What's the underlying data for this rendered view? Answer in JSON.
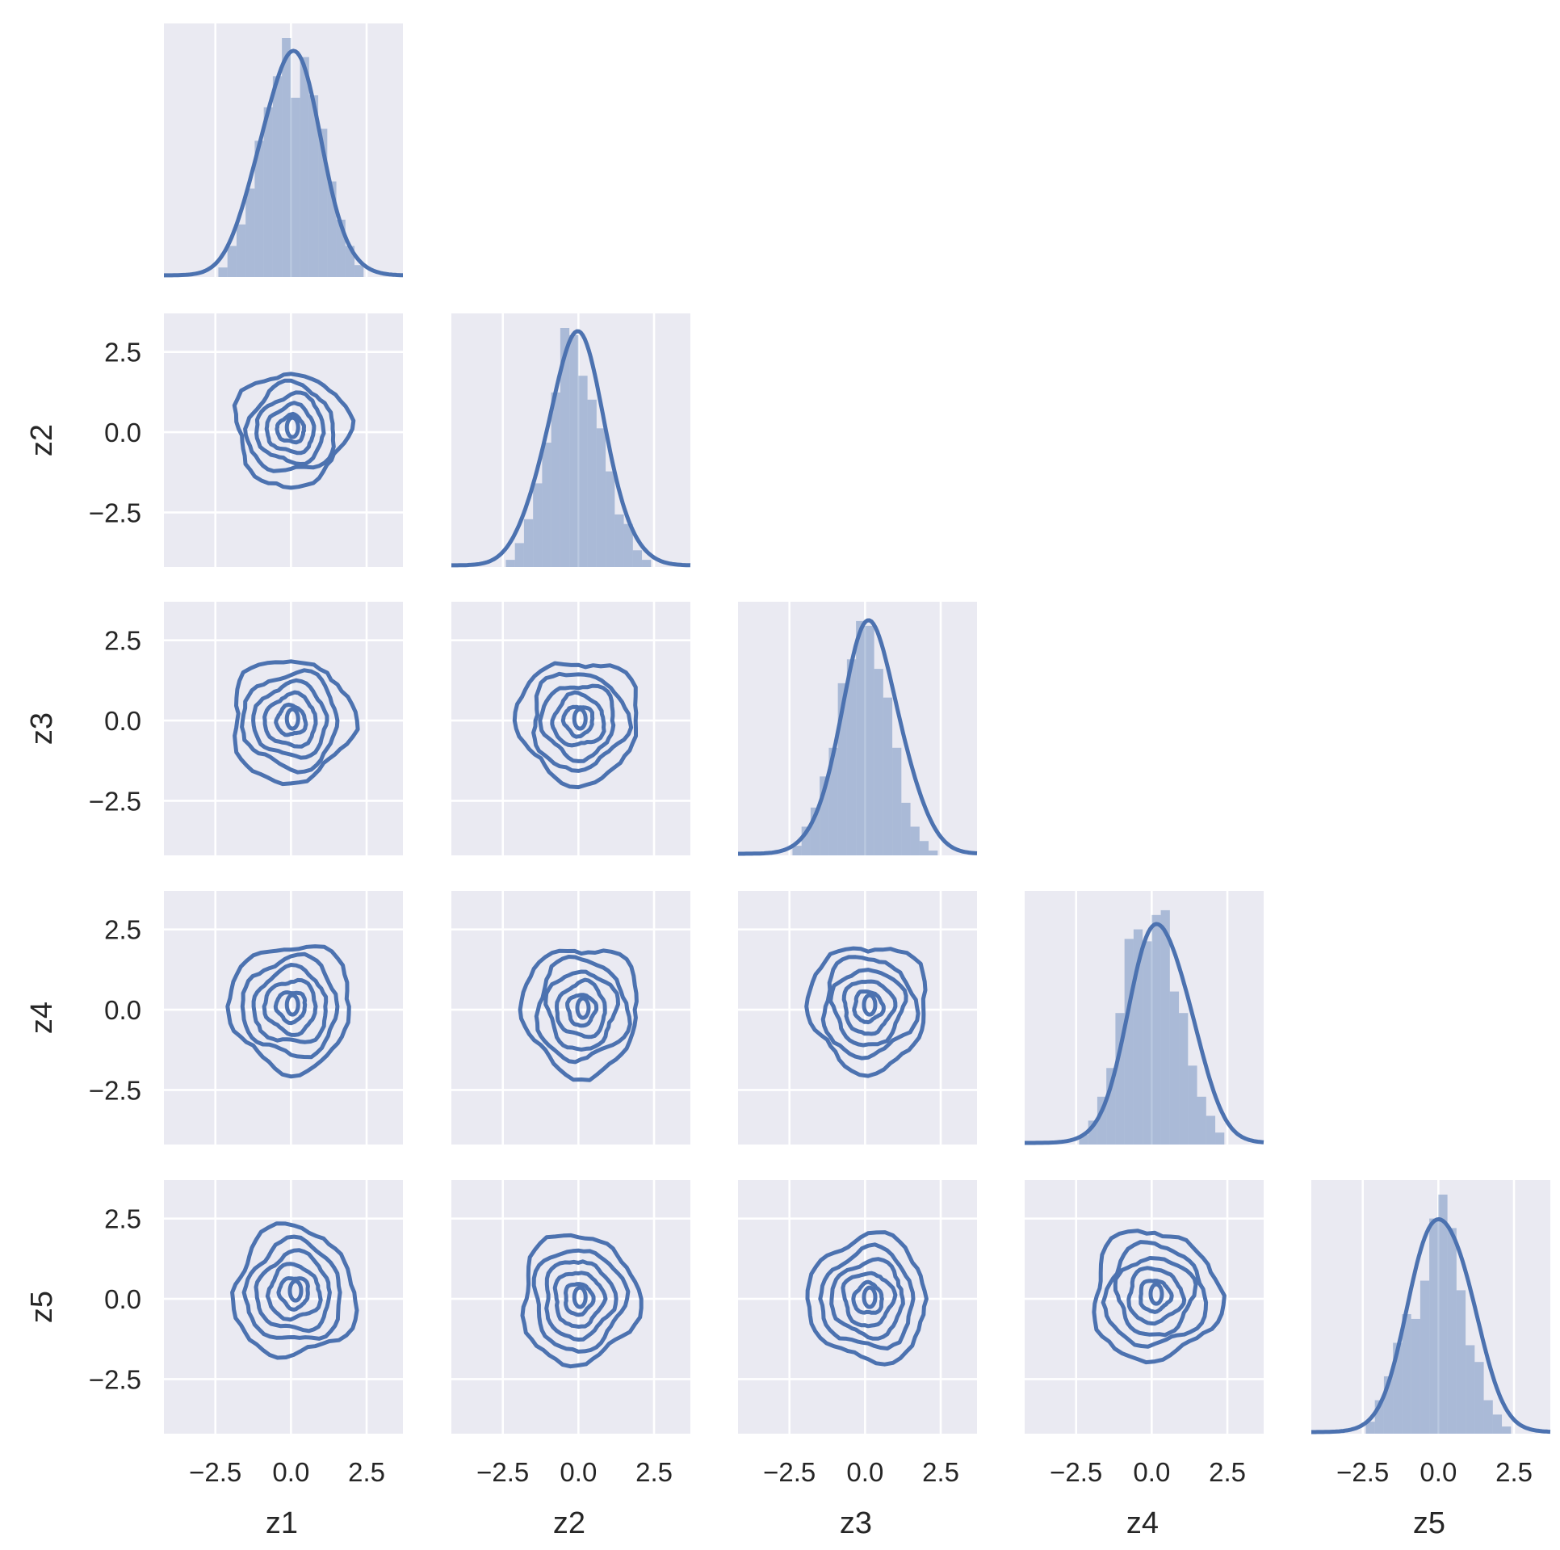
{
  "chart_data": {
    "type": "pairplot",
    "corner": true,
    "variables": [
      "z1",
      "z2",
      "z3",
      "z4",
      "z5"
    ],
    "diagonal": "histogram + kde",
    "off_diagonal": "kde contour",
    "xlim": [
      -4.2,
      3.7
    ],
    "ylim": [
      -4.2,
      3.7
    ],
    "ticks": [
      -2.5,
      0.0,
      2.5
    ],
    "tick_labels": [
      "−2.5",
      "0.0",
      "2.5"
    ],
    "grid": true,
    "line_color": "#4c72b0",
    "panel_background": "#eaeaf2",
    "diagonal_histograms": [
      {
        "variable": "z1",
        "bin_edges": [
          -2.4,
          -2.1,
          -1.8,
          -1.5,
          -1.2,
          -0.9,
          -0.6,
          -0.3,
          0.0,
          0.3,
          0.6,
          0.9,
          1.2,
          1.5,
          1.8,
          2.1,
          2.4
        ],
        "heights": [
          0.04,
          0.13,
          0.22,
          0.37,
          0.57,
          0.71,
          0.84,
          1.0,
          0.75,
          0.92,
          0.76,
          0.62,
          0.4,
          0.24,
          0.13,
          0.05
        ],
        "kde_peak_x": -0.05
      },
      {
        "variable": "z2",
        "bin_edges": [
          -2.4,
          -2.1,
          -1.8,
          -1.5,
          -1.2,
          -0.9,
          -0.6,
          -0.3,
          0.0,
          0.3,
          0.6,
          0.9,
          1.2,
          1.5,
          1.8,
          2.1,
          2.4
        ],
        "heights": [
          0.03,
          0.1,
          0.2,
          0.35,
          0.52,
          0.73,
          1.0,
          0.97,
          0.8,
          0.7,
          0.58,
          0.4,
          0.22,
          0.18,
          0.07,
          0.03
        ],
        "kde_peak_x": -0.1
      },
      {
        "variable": "z3",
        "bin_edges": [
          -2.4,
          -2.1,
          -1.8,
          -1.5,
          -1.2,
          -0.9,
          -0.6,
          -0.3,
          0.0,
          0.3,
          0.6,
          0.9,
          1.2,
          1.5,
          1.8,
          2.1,
          2.4
        ],
        "heights": [
          0.04,
          0.12,
          0.2,
          0.33,
          0.45,
          0.72,
          0.82,
          0.98,
          0.96,
          0.78,
          0.66,
          0.45,
          0.22,
          0.12,
          0.06,
          0.02
        ],
        "kde_peak_x": 0.2
      },
      {
        "variable": "z4",
        "bin_edges": [
          -2.4,
          -2.1,
          -1.8,
          -1.5,
          -1.2,
          -0.9,
          -0.6,
          -0.3,
          0.0,
          0.3,
          0.6,
          0.9,
          1.2,
          1.5,
          1.8,
          2.1,
          2.4
        ],
        "heights": [
          0.04,
          0.1,
          0.2,
          0.32,
          0.55,
          0.86,
          0.9,
          0.85,
          0.96,
          0.98,
          0.64,
          0.55,
          0.33,
          0.2,
          0.12,
          0.05
        ],
        "kde_peak_x": 0.3
      },
      {
        "variable": "z5",
        "bin_edges": [
          -2.4,
          -2.1,
          -1.8,
          -1.5,
          -1.2,
          -0.9,
          -0.6,
          -0.3,
          0.0,
          0.3,
          0.6,
          0.9,
          1.2,
          1.5,
          1.8,
          2.1,
          2.4
        ],
        "heights": [
          0.05,
          0.14,
          0.24,
          0.38,
          0.5,
          0.48,
          0.64,
          0.9,
          1.0,
          0.86,
          0.6,
          0.37,
          0.3,
          0.14,
          0.08,
          0.03
        ],
        "kde_peak_x": 0.1
      }
    ],
    "contour_panels": [
      {
        "x": "z1",
        "y": "z2",
        "center": [
          0.0,
          0.1
        ],
        "outer_radius": [
          1.85,
          1.75
        ]
      },
      {
        "x": "z1",
        "y": "z3",
        "center": [
          0.0,
          0.0
        ],
        "outer_radius": [
          2.0,
          1.9
        ]
      },
      {
        "x": "z2",
        "y": "z3",
        "center": [
          0.0,
          0.0
        ],
        "outer_radius": [
          2.0,
          1.9
        ]
      },
      {
        "x": "z1",
        "y": "z4",
        "center": [
          0.0,
          0.1
        ],
        "outer_radius": [
          2.0,
          1.95
        ]
      },
      {
        "x": "z2",
        "y": "z4",
        "center": [
          0.1,
          0.0
        ],
        "outer_radius": [
          1.9,
          2.0
        ]
      },
      {
        "x": "z3",
        "y": "z4",
        "center": [
          0.1,
          0.1
        ],
        "outer_radius": [
          1.95,
          1.95
        ]
      },
      {
        "x": "z1",
        "y": "z5",
        "center": [
          0.1,
          0.2
        ],
        "outer_radius": [
          2.0,
          2.0
        ]
      },
      {
        "x": "z2",
        "y": "z5",
        "center": [
          0.0,
          0.0
        ],
        "outer_radius": [
          1.9,
          2.0
        ]
      },
      {
        "x": "z3",
        "y": "z5",
        "center": [
          0.1,
          0.0
        ],
        "outer_radius": [
          1.95,
          1.95
        ]
      },
      {
        "x": "z4",
        "y": "z5",
        "center": [
          0.1,
          0.1
        ],
        "outer_radius": [
          2.1,
          2.0
        ]
      }
    ],
    "contour_levels": [
      1.0,
      0.78,
      0.6,
      0.42,
      0.24
    ]
  }
}
